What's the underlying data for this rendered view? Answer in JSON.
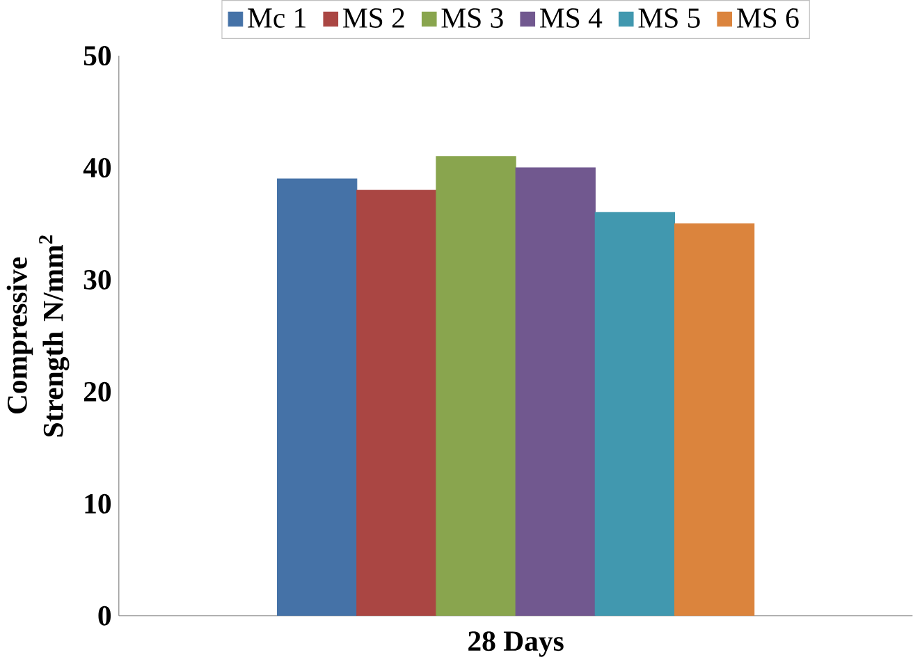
{
  "chart_data": {
    "type": "bar",
    "ylabel": "Compressive Strength N/mm$^{2}$",
    "categories": [
      "28 Days"
    ],
    "series": [
      {
        "name": "Mc 1",
        "color": "#4572a7",
        "values": [
          39
        ]
      },
      {
        "name": "MS 2",
        "color": "#aa4643",
        "values": [
          38
        ]
      },
      {
        "name": "MS 3",
        "color": "#89a54e",
        "values": [
          41
        ]
      },
      {
        "name": "MS 4",
        "color": "#71588f",
        "values": [
          40
        ]
      },
      {
        "name": "MS 5",
        "color": "#4198af",
        "values": [
          36
        ]
      },
      {
        "name": "MS 6",
        "color": "#db843d",
        "values": [
          35
        ]
      }
    ],
    "ylim": [
      0,
      50
    ],
    "yticks": [
      0,
      10,
      20,
      30,
      40,
      50
    ],
    "legend": "top",
    "grid": false
  }
}
